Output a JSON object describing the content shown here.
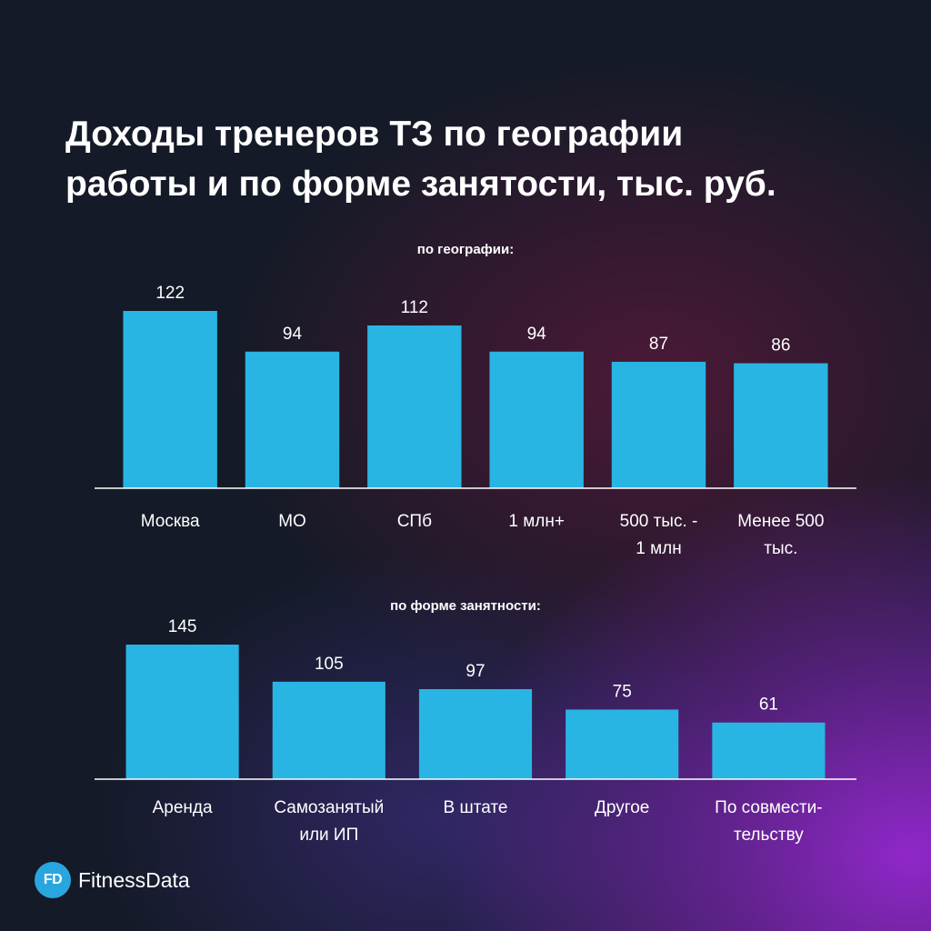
{
  "title": "Доходы тренеров ТЗ по географии\nработы и по форме занятости, тыс. руб.",
  "logo": {
    "badge": "FD",
    "name": "FitnessData"
  },
  "colors": {
    "bar": "#29b5e3",
    "axis": "#ffffff",
    "text": "#ffffff"
  },
  "chart_data": [
    {
      "type": "bar",
      "title": "по географии:",
      "categories": [
        "Москва",
        "МО",
        "СПб",
        "1 млн+",
        "500 тыс. -\n1 млн",
        "Менее 500\nтыс."
      ],
      "values": [
        122,
        94,
        112,
        94,
        87,
        86
      ],
      "ylim": [
        0,
        122
      ],
      "xlabel": "",
      "ylabel": "",
      "grid": false
    },
    {
      "type": "bar",
      "title": "по форме занятности:",
      "categories": [
        "Аренда",
        "Самозанятый\nили ИП",
        "В штате",
        "Другое",
        "По совмести-\nтельству"
      ],
      "values": [
        145,
        105,
        97,
        75,
        61
      ],
      "ylim": [
        0,
        145
      ],
      "xlabel": "",
      "ylabel": "",
      "grid": false
    }
  ]
}
